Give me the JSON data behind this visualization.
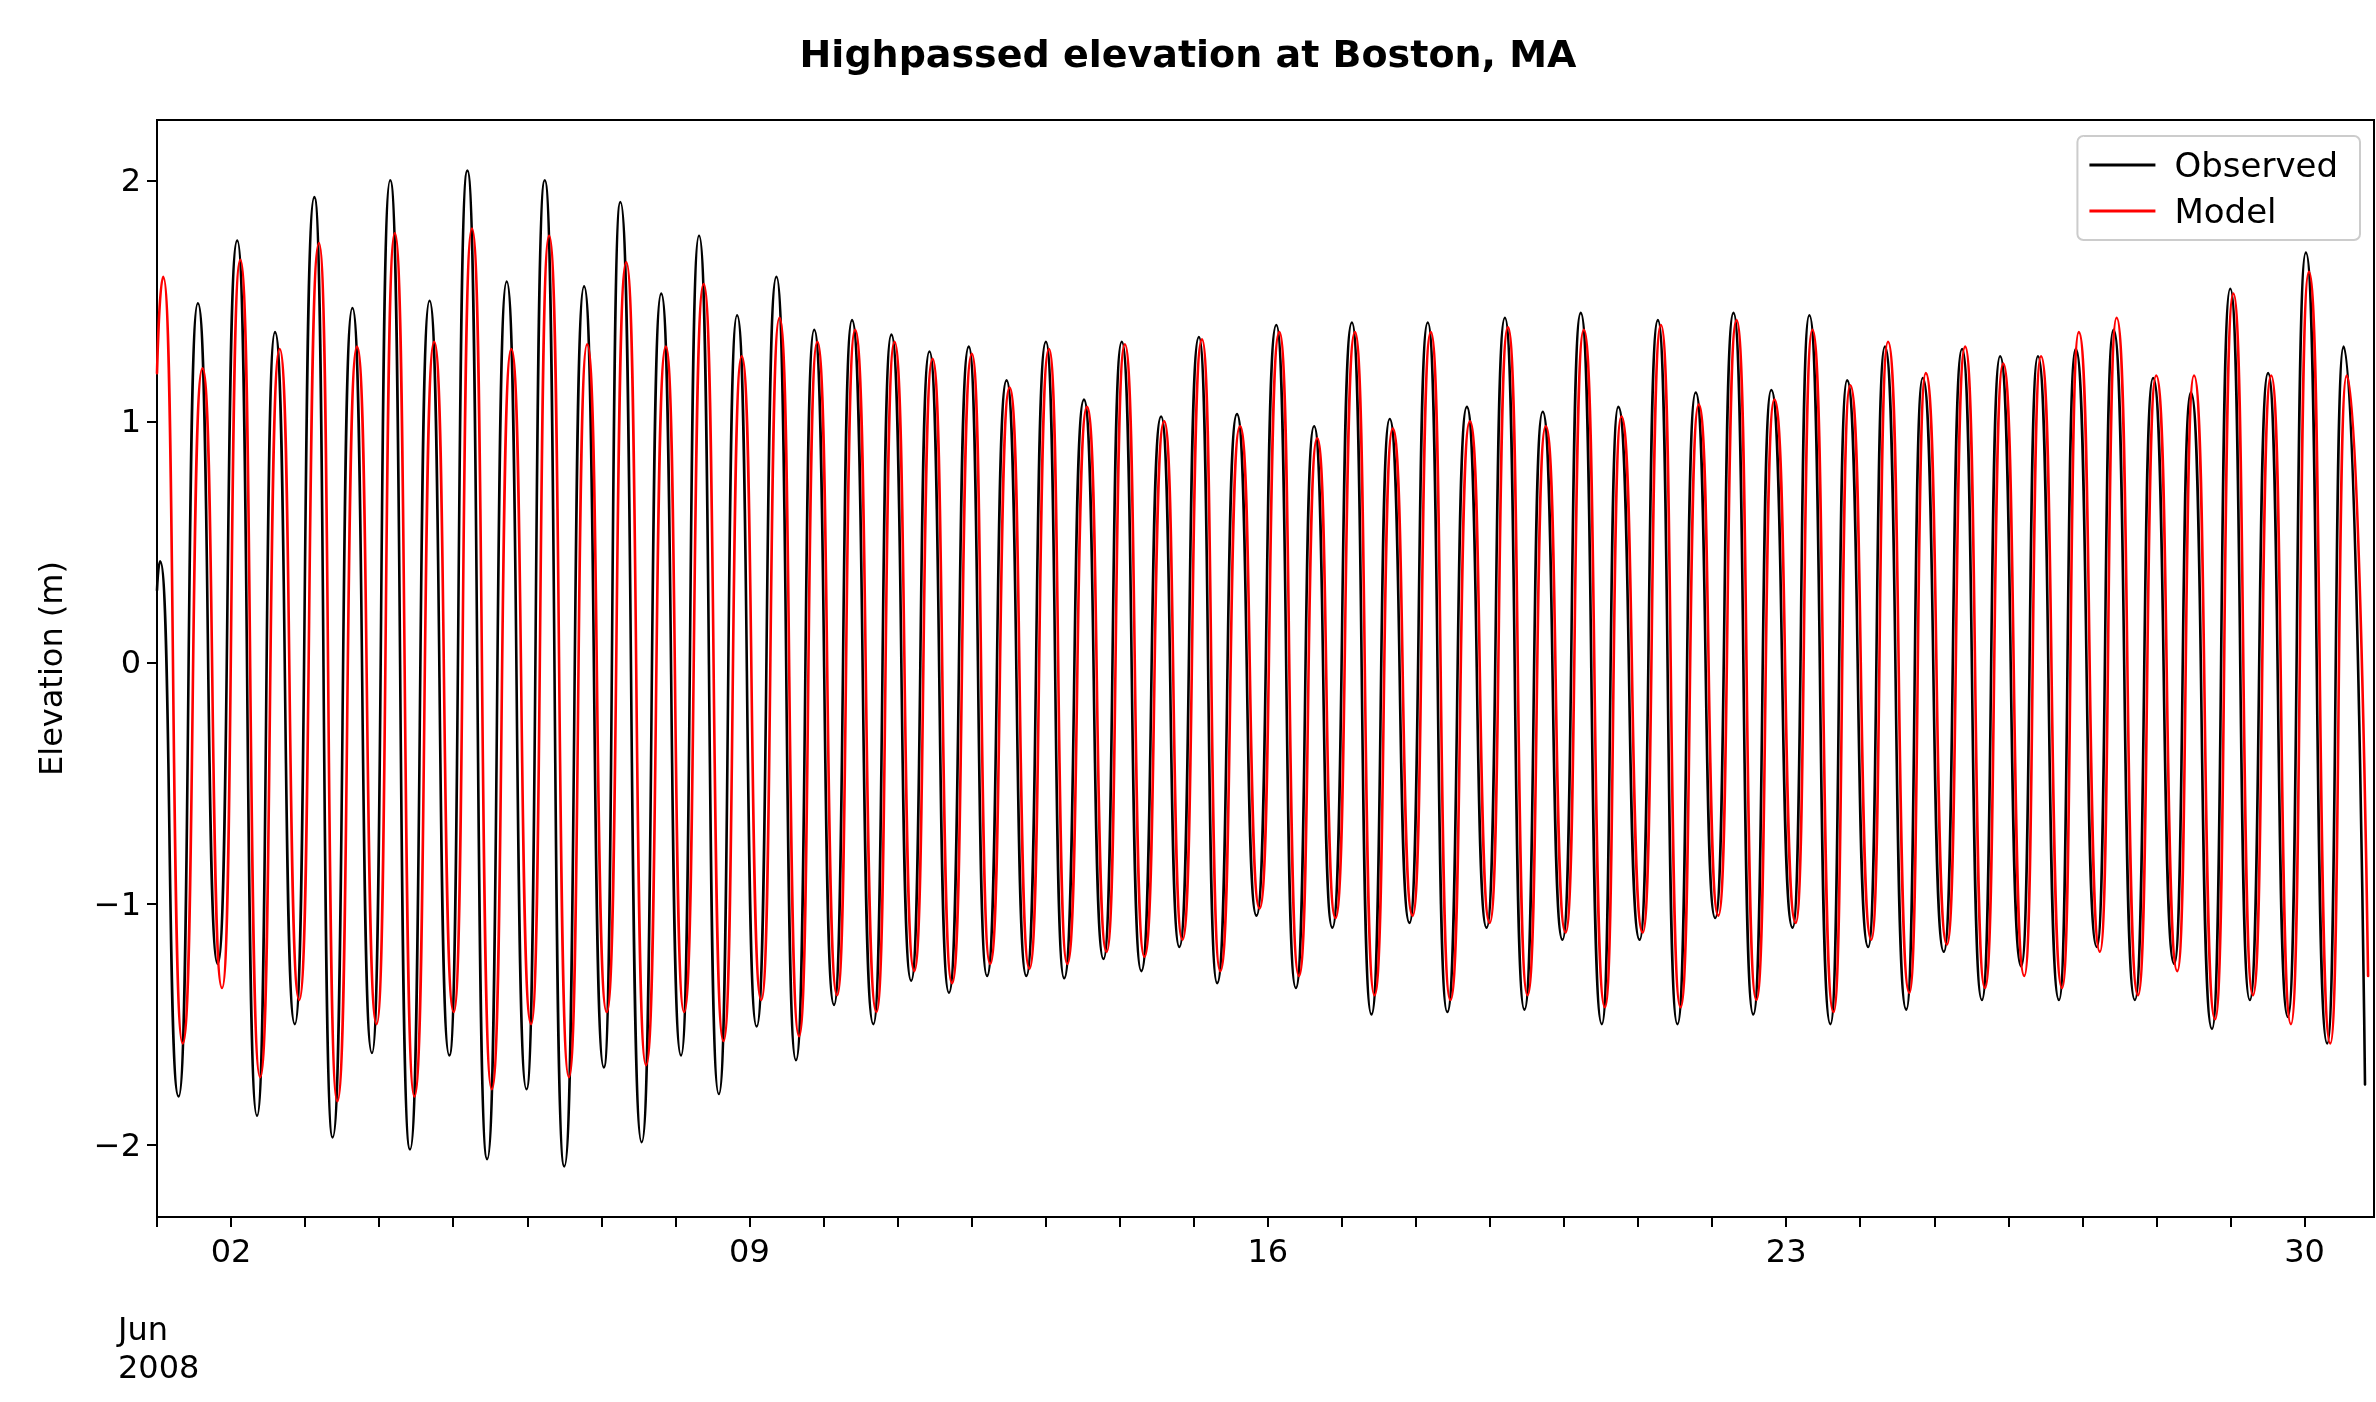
{
  "chart_data": {
    "type": "line",
    "title": "Highpassed elevation at Boston, MA",
    "ylabel": "Elevation (m)",
    "annotations": [
      "Jun\n2008"
    ],
    "xlim": [
      "2008-06-01",
      "2008-06-30T22:30"
    ],
    "xticks": [
      {
        "value": "2008-06-01",
        "label": null
      },
      {
        "value": "2008-06-02",
        "label": "02"
      },
      {
        "value": "2008-06-03",
        "label": null
      },
      {
        "value": "2008-06-04",
        "label": null
      },
      {
        "value": "2008-06-05",
        "label": null
      },
      {
        "value": "2008-06-06",
        "label": null
      },
      {
        "value": "2008-06-07",
        "label": null
      },
      {
        "value": "2008-06-08",
        "label": null
      },
      {
        "value": "2008-06-09",
        "label": "09"
      },
      {
        "value": "2008-06-10",
        "label": null
      },
      {
        "value": "2008-06-11",
        "label": null
      },
      {
        "value": "2008-06-12",
        "label": null
      },
      {
        "value": "2008-06-13",
        "label": null
      },
      {
        "value": "2008-06-14",
        "label": null
      },
      {
        "value": "2008-06-15",
        "label": null
      },
      {
        "value": "2008-06-16",
        "label": "16"
      },
      {
        "value": "2008-06-17",
        "label": null
      },
      {
        "value": "2008-06-18",
        "label": null
      },
      {
        "value": "2008-06-19",
        "label": null
      },
      {
        "value": "2008-06-20",
        "label": null
      },
      {
        "value": "2008-06-21",
        "label": null
      },
      {
        "value": "2008-06-22",
        "label": null
      },
      {
        "value": "2008-06-23",
        "label": "23"
      },
      {
        "value": "2008-06-24",
        "label": null
      },
      {
        "value": "2008-06-25",
        "label": null
      },
      {
        "value": "2008-06-26",
        "label": null
      },
      {
        "value": "2008-06-27",
        "label": null
      },
      {
        "value": "2008-06-28",
        "label": null
      },
      {
        "value": "2008-06-29",
        "label": null
      },
      {
        "value": "2008-06-30",
        "label": "30"
      }
    ],
    "ylim": [
      -2.3,
      2.25
    ],
    "yticks": [
      {
        "value": -2,
        "label": "−2"
      },
      {
        "value": -1,
        "label": "−1"
      },
      0,
      1,
      2
    ],
    "grid": false,
    "legend": "top right",
    "marker": "none",
    "line_style": "solid",
    "series": [
      {
        "name": "Observed",
        "color": "#000000",
        "x": [
          "2008-06-01T00:00",
          "2008-06-01T01:00",
          "2008-06-01T07:00",
          "2008-06-01T13:15",
          "2008-06-01T19:40",
          "2008-06-02T02:00",
          "2008-06-02T08:25",
          "2008-06-02T14:15",
          "2008-06-02T20:40",
          "2008-06-03T03:00",
          "2008-06-03T08:55",
          "2008-06-03T15:20",
          "2008-06-03T21:40",
          "2008-06-04T03:35",
          "2008-06-04T10:00",
          "2008-06-04T16:20",
          "2008-06-04T22:45",
          "2008-06-05T04:35",
          "2008-06-05T11:00",
          "2008-06-05T17:20",
          "2008-06-05T23:45",
          "2008-06-06T05:40",
          "2008-06-06T12:00",
          "2008-06-06T18:25",
          "2008-06-07T00:50",
          "2008-06-07T06:10",
          "2008-06-07T13:05",
          "2008-06-07T19:25",
          "2008-06-08T01:50",
          "2008-06-08T07:40",
          "2008-06-08T14:05",
          "2008-06-08T20:00",
          "2008-06-09T02:20",
          "2008-06-09T08:45",
          "2008-06-09T15:05",
          "2008-06-09T21:00",
          "2008-06-10T03:25",
          "2008-06-10T09:15",
          "2008-06-10T16:10",
          "2008-06-10T22:00",
          "2008-06-11T04:25",
          "2008-06-11T10:20",
          "2008-06-11T16:40",
          "2008-06-11T23:05",
          "2008-06-12T05:00",
          "2008-06-12T11:20",
          "2008-06-12T17:45",
          "2008-06-13T00:05",
          "2008-06-13T06:00",
          "2008-06-13T12:25",
          "2008-06-13T18:45",
          "2008-06-14T00:40",
          "2008-06-14T07:00",
          "2008-06-14T13:25",
          "2008-06-14T19:20",
          "2008-06-15T01:40",
          "2008-06-15T07:35",
          "2008-06-15T14:00",
          "2008-06-15T20:20",
          "2008-06-16T02:45",
          "2008-06-16T09:05",
          "2008-06-16T15:00",
          "2008-06-16T20:55",
          "2008-06-17T03:15",
          "2008-06-17T09:35",
          "2008-06-17T15:30",
          "2008-06-17T21:55",
          "2008-06-18T03:50",
          "2008-06-18T10:10",
          "2008-06-18T16:30",
          "2008-06-18T22:55",
          "2008-06-19T04:50",
          "2008-06-19T11:10",
          "2008-06-19T17:05",
          "2008-06-19T23:30",
          "2008-06-20T05:25",
          "2008-06-20T12:15",
          "2008-06-20T17:35",
          "2008-06-21T00:30",
          "2008-06-21T06:25",
          "2008-06-21T12:45",
          "2008-06-21T18:40",
          "2008-06-22T01:00",
          "2008-06-22T06:55",
          "2008-06-22T13:20",
          "2008-06-22T19:10",
          "2008-06-23T02:05",
          "2008-06-23T07:30",
          "2008-06-23T14:20",
          "2008-06-23T19:45",
          "2008-06-24T02:35",
          "2008-06-24T08:00",
          "2008-06-24T14:55",
          "2008-06-24T20:15",
          "2008-06-25T03:05",
          "2008-06-25T09:00",
          "2008-06-25T15:25",
          "2008-06-25T21:20",
          "2008-06-26T04:10",
          "2008-06-26T09:35",
          "2008-06-26T16:25",
          "2008-06-26T21:50",
          "2008-06-27T04:40",
          "2008-06-27T10:05",
          "2008-06-27T17:00",
          "2008-06-27T22:55",
          "2008-06-28T05:45",
          "2008-06-28T11:10",
          "2008-06-28T18:00",
          "2008-06-28T23:55",
          "2008-06-29T06:15",
          "2008-06-29T12:10",
          "2008-06-29T18:35",
          "2008-06-30T00:25",
          "2008-06-30T07:20",
          "2008-06-30T12:40",
          "2008-06-30T19:35"
        ],
        "values": [
          0.3,
          0.42,
          -1.8,
          1.49,
          -1.25,
          1.75,
          -1.88,
          1.37,
          -1.5,
          1.93,
          -1.97,
          1.47,
          -1.62,
          2.0,
          -2.02,
          1.5,
          -1.63,
          2.04,
          -2.06,
          1.58,
          -1.77,
          2.0,
          -2.09,
          1.56,
          -1.68,
          1.91,
          -1.99,
          1.53,
          -1.63,
          1.77,
          -1.79,
          1.44,
          -1.51,
          1.6,
          -1.65,
          1.38,
          -1.42,
          1.42,
          -1.5,
          1.36,
          -1.32,
          1.29,
          -1.37,
          1.31,
          -1.3,
          1.17,
          -1.3,
          1.33,
          -1.31,
          1.09,
          -1.23,
          1.33,
          -1.28,
          1.02,
          -1.18,
          1.35,
          -1.33,
          1.03,
          -1.05,
          1.4,
          -1.35,
          0.98,
          -1.1,
          1.41,
          -1.46,
          1.01,
          -1.08,
          1.41,
          -1.45,
          1.06,
          -1.1,
          1.43,
          -1.44,
          1.04,
          -1.15,
          1.45,
          -1.5,
          1.06,
          -1.15,
          1.42,
          -1.5,
          1.12,
          -1.06,
          1.45,
          -1.46,
          1.13,
          -1.1,
          1.44,
          -1.5,
          1.17,
          -1.18,
          1.31,
          -1.44,
          1.18,
          -1.2,
          1.3,
          -1.4,
          1.27,
          -1.26,
          1.27,
          -1.4,
          1.3,
          -1.18,
          1.38,
          -1.4,
          1.18,
          -1.25,
          1.12,
          -1.52,
          1.55,
          -1.4,
          1.2,
          -1.47,
          1.7,
          -1.58,
          1.31,
          -1.75
        ]
      },
      {
        "name": "Model",
        "color": "#ff0000",
        "x": [
          "2008-06-01T00:00",
          "2008-06-01T02:00",
          "2008-06-01T08:20",
          "2008-06-01T14:45",
          "2008-06-01T21:05",
          "2008-06-02T03:00",
          "2008-06-02T09:25",
          "2008-06-02T15:45",
          "2008-06-02T22:05",
          "2008-06-03T04:30",
          "2008-06-03T10:25",
          "2008-06-03T16:50",
          "2008-06-03T23:10",
          "2008-06-04T05:05",
          "2008-06-04T11:25",
          "2008-06-04T17:50",
          "2008-06-05T00:10",
          "2008-06-05T06:05",
          "2008-06-05T12:30",
          "2008-06-05T18:50",
          "2008-06-06T01:15",
          "2008-06-06T07:05",
          "2008-06-06T13:30",
          "2008-06-06T19:25",
          "2008-06-07T01:45",
          "2008-06-07T08:05",
          "2008-06-07T14:30",
          "2008-06-07T20:55",
          "2008-06-08T02:50",
          "2008-06-08T09:10",
          "2008-06-08T15:35",
          "2008-06-08T21:30",
          "2008-06-09T03:50",
          "2008-06-09T09:45",
          "2008-06-09T16:05",
          "2008-06-09T22:00",
          "2008-06-10T04:25",
          "2008-06-10T10:15",
          "2008-06-10T17:10",
          "2008-06-10T23:00",
          "2008-06-11T05:25",
          "2008-06-11T11:20",
          "2008-06-11T17:40",
          "2008-06-12T00:05",
          "2008-06-12T06:00",
          "2008-06-12T12:20",
          "2008-06-12T18:45",
          "2008-06-13T01:05",
          "2008-06-13T07:00",
          "2008-06-13T13:25",
          "2008-06-13T19:45",
          "2008-06-14T01:40",
          "2008-06-14T08:00",
          "2008-06-14T14:25",
          "2008-06-14T20:20",
          "2008-06-15T02:40",
          "2008-06-15T08:35",
          "2008-06-15T15:00",
          "2008-06-15T21:20",
          "2008-06-16T03:45",
          "2008-06-16T10:05",
          "2008-06-16T16:00",
          "2008-06-16T21:55",
          "2008-06-17T04:15",
          "2008-06-17T10:35",
          "2008-06-17T16:30",
          "2008-06-17T22:55",
          "2008-06-18T04:50",
          "2008-06-18T11:10",
          "2008-06-18T17:30",
          "2008-06-18T23:55",
          "2008-06-19T05:50",
          "2008-06-19T12:10",
          "2008-06-19T18:05",
          "2008-06-20T00:30",
          "2008-06-20T06:25",
          "2008-06-20T13:15",
          "2008-06-20T18:35",
          "2008-06-21T01:30",
          "2008-06-21T07:25",
          "2008-06-21T13:45",
          "2008-06-21T19:40",
          "2008-06-22T02:00",
          "2008-06-22T07:55",
          "2008-06-22T14:20",
          "2008-06-22T20:10",
          "2008-06-23T03:05",
          "2008-06-23T08:30",
          "2008-06-23T15:20",
          "2008-06-23T20:45",
          "2008-06-24T03:35",
          "2008-06-24T09:00",
          "2008-06-24T15:55",
          "2008-06-24T21:15",
          "2008-06-25T04:05",
          "2008-06-25T10:00",
          "2008-06-25T16:25",
          "2008-06-25T22:20",
          "2008-06-26T05:10",
          "2008-06-26T10:35",
          "2008-06-26T17:25",
          "2008-06-26T22:50",
          "2008-06-27T05:40",
          "2008-06-27T11:05",
          "2008-06-27T18:00",
          "2008-06-27T23:55",
          "2008-06-28T06:45",
          "2008-06-28T12:10",
          "2008-06-28T19:00",
          "2008-06-29T00:55",
          "2008-06-29T07:15",
          "2008-06-29T13:10",
          "2008-06-29T19:35",
          "2008-06-30T01:25",
          "2008-06-30T08:20",
          "2008-06-30T13:40",
          "2008-06-30T20:35"
        ],
        "values": [
          1.2,
          1.6,
          -1.58,
          1.22,
          -1.35,
          1.67,
          -1.72,
          1.3,
          -1.4,
          1.74,
          -1.82,
          1.31,
          -1.5,
          1.78,
          -1.8,
          1.33,
          -1.45,
          1.8,
          -1.77,
          1.3,
          -1.5,
          1.77,
          -1.72,
          1.32,
          -1.45,
          1.66,
          -1.67,
          1.31,
          -1.45,
          1.57,
          -1.57,
          1.27,
          -1.4,
          1.43,
          -1.55,
          1.33,
          -1.38,
          1.38,
          -1.45,
          1.33,
          -1.28,
          1.26,
          -1.33,
          1.28,
          -1.25,
          1.14,
          -1.27,
          1.3,
          -1.25,
          1.06,
          -1.2,
          1.32,
          -1.22,
          1.0,
          -1.15,
          1.34,
          -1.28,
          0.98,
          -1.02,
          1.37,
          -1.3,
          0.93,
          -1.06,
          1.37,
          -1.38,
          0.97,
          -1.05,
          1.37,
          -1.4,
          1.0,
          -1.08,
          1.39,
          -1.38,
          0.98,
          -1.12,
          1.38,
          -1.43,
          1.02,
          -1.12,
          1.4,
          -1.43,
          1.07,
          -1.05,
          1.42,
          -1.4,
          1.09,
          -1.08,
          1.38,
          -1.45,
          1.15,
          -1.15,
          1.33,
          -1.37,
          1.2,
          -1.17,
          1.31,
          -1.35,
          1.24,
          -1.3,
          1.27,
          -1.35,
          1.37,
          -1.2,
          1.43,
          -1.38,
          1.19,
          -1.28,
          1.19,
          -1.48,
          1.53,
          -1.38,
          1.19,
          -1.5,
          1.62,
          -1.58,
          1.19,
          -1.3
        ]
      }
    ]
  }
}
